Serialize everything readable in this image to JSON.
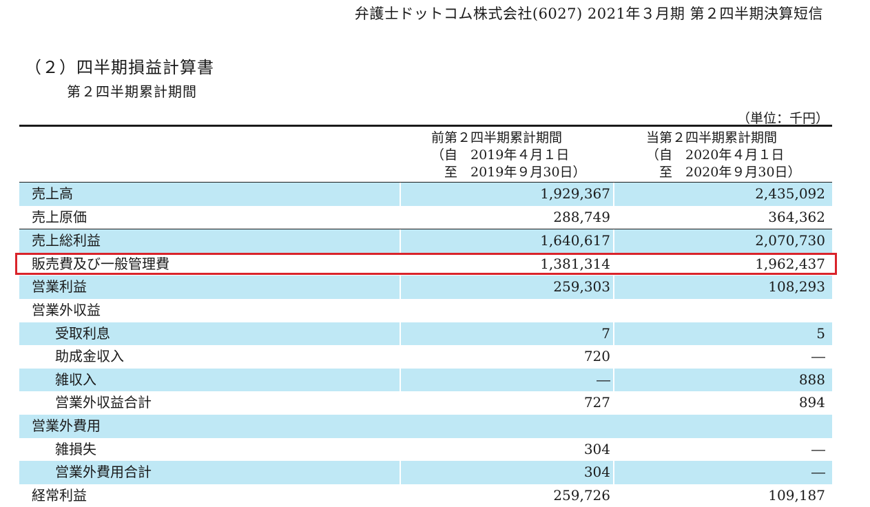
{
  "document": {
    "header": "弁護士ドットコム株式会社(6027) 2021年３月期 第２四半期決算短信",
    "section_title": "（２）四半期損益計算書",
    "period_title": "第２四半期累計期間",
    "unit": "（単位：千円）"
  },
  "columns": {
    "prev": {
      "line1": "前第２四半期累計期間",
      "line2": "（自　2019年４月１日",
      "line3": "　至　2019年９月30日）"
    },
    "curr": {
      "line1": "当第２四半期累計期間",
      "line2": "（自　2020年４月１日",
      "line3": "　至　2020年９月30日）"
    }
  },
  "rows": [
    {
      "label": "売上高",
      "prev": "1,929,367",
      "curr": "2,435,092"
    },
    {
      "label": "売上原価",
      "prev": "288,749",
      "curr": "364,362"
    },
    {
      "label": "売上総利益",
      "prev": "1,640,617",
      "curr": "2,070,730"
    },
    {
      "label": "販売費及び一般管理費",
      "prev": "1,381,314",
      "curr": "1,962,437"
    },
    {
      "label": "営業利益",
      "prev": "259,303",
      "curr": "108,293"
    },
    {
      "label": "営業外収益",
      "prev": "",
      "curr": ""
    },
    {
      "label": "受取利息",
      "prev": "7",
      "curr": "5"
    },
    {
      "label": "助成金収入",
      "prev": "720",
      "curr": "―"
    },
    {
      "label": "雑収入",
      "prev": "―",
      "curr": "888"
    },
    {
      "label": "営業外収益合計",
      "prev": "727",
      "curr": "894"
    },
    {
      "label": "営業外費用",
      "prev": "",
      "curr": ""
    },
    {
      "label": "雑損失",
      "prev": "304",
      "curr": "―"
    },
    {
      "label": "営業外費用合計",
      "prev": "304",
      "curr": "―"
    },
    {
      "label": "経常利益",
      "prev": "259,726",
      "curr": "109,187"
    }
  ],
  "highlight": {
    "row_label": "販売費及び一般管理費",
    "color": "#d9232a"
  },
  "colors": {
    "row_shade": "#bfe8f5",
    "text": "#1a1a1a"
  }
}
